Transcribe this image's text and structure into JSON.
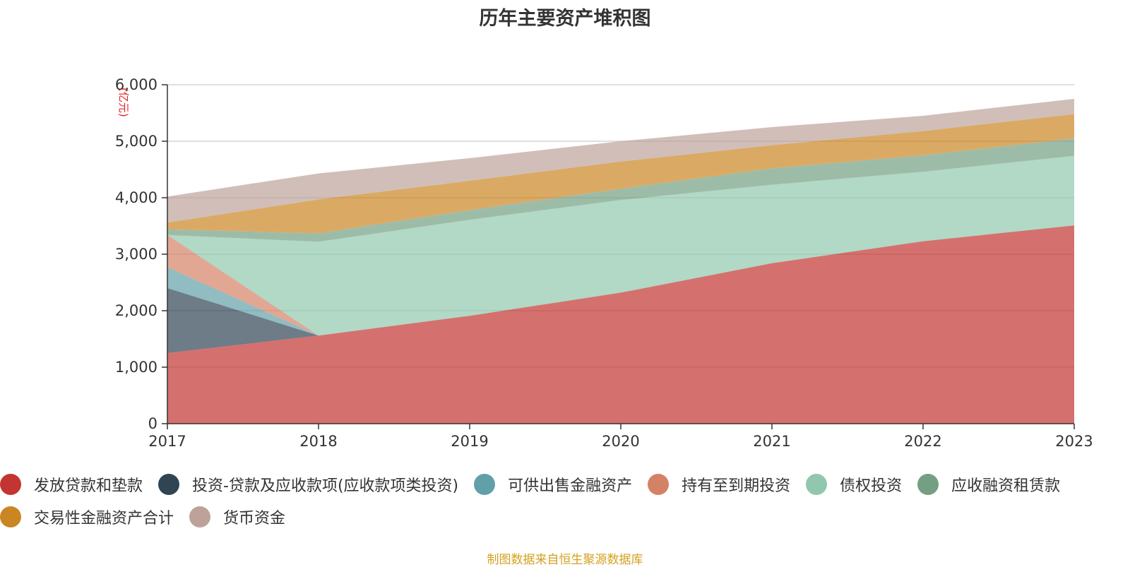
{
  "chart_data": {
    "type": "area",
    "stacked": true,
    "title": "历年主要资产堆积图",
    "ylabel": "(亿元)",
    "xlabel": "",
    "x": [
      "2017",
      "2018",
      "2019",
      "2020",
      "2021",
      "2022",
      "2023"
    ],
    "ylim": [
      0,
      6000
    ],
    "yticks": [
      0,
      1000,
      2000,
      3000,
      4000,
      5000,
      6000
    ],
    "ytick_labels": [
      "0",
      "1,000",
      "2,000",
      "3,000",
      "4,000",
      "5,000",
      "6,000"
    ],
    "grid": true,
    "legend_position": "bottom",
    "series": [
      {
        "name": "发放贷款和垫款",
        "color": "#c23531",
        "values": [
          1250,
          1560,
          1910,
          2320,
          2840,
          3230,
          3510
        ]
      },
      {
        "name": "投资-贷款及应收款项(应收款项类投资)",
        "color": "#2f4554",
        "values": [
          1150,
          0,
          0,
          0,
          0,
          0,
          0
        ]
      },
      {
        "name": "可供出售金融资产",
        "color": "#61a0a8",
        "values": [
          370,
          0,
          0,
          0,
          0,
          0,
          0
        ]
      },
      {
        "name": "持有至到期投资",
        "color": "#d48265",
        "values": [
          570,
          0,
          0,
          0,
          0,
          0,
          0
        ]
      },
      {
        "name": "债权投资",
        "color": "#91c7ae",
        "values": [
          0,
          1660,
          1700,
          1640,
          1390,
          1230,
          1230
        ]
      },
      {
        "name": "应收融资租赁款",
        "color": "#749f83",
        "values": [
          100,
          150,
          170,
          200,
          290,
          290,
          310
        ]
      },
      {
        "name": "交易性金融资产合计",
        "color": "#ca8622",
        "values": [
          120,
          600,
          520,
          480,
          410,
          430,
          430
        ]
      },
      {
        "name": "货币资金",
        "color": "#bda29a",
        "values": [
          460,
          460,
          400,
          360,
          320,
          270,
          270
        ]
      }
    ]
  },
  "source_note": "制图数据来自恒生聚源数据库"
}
